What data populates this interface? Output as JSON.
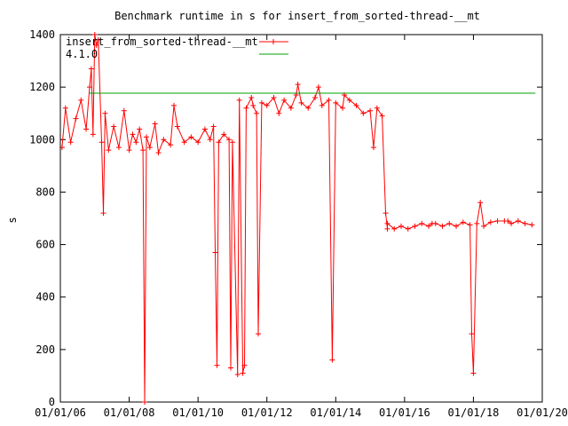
{
  "chart_data": {
    "type": "line",
    "title": "Benchmark runtime in s for insert_from_sorted-thread-__mt",
    "xlabel": "",
    "ylabel": "s",
    "x_tick_labels": [
      "01/01/06",
      "01/01/08",
      "01/01/10",
      "01/01/12",
      "01/01/14",
      "01/01/16",
      "01/01/18",
      "01/01/20"
    ],
    "xlim": [
      2006.0,
      2020.0
    ],
    "ylim": [
      0,
      1400
    ],
    "y_ticks": [
      0,
      200,
      400,
      600,
      800,
      1000,
      1200,
      1400
    ],
    "grid": false,
    "legend_position": "top-left",
    "series": [
      {
        "name": "insert_from_sorted-thread-__mt",
        "color": "#ff0000",
        "marker": "plus",
        "points": [
          [
            2006.05,
            970
          ],
          [
            2006.15,
            1120
          ],
          [
            2006.3,
            990
          ],
          [
            2006.45,
            1080
          ],
          [
            2006.6,
            1150
          ],
          [
            2006.75,
            1040
          ],
          [
            2006.85,
            1200
          ],
          [
            2006.95,
            1020
          ],
          [
            2007.05,
            1360
          ],
          [
            2007.2,
            990
          ],
          [
            2007.3,
            1100
          ],
          [
            2007.4,
            960
          ],
          [
            2007.55,
            1050
          ],
          [
            2007.7,
            970
          ],
          [
            2007.85,
            1110
          ],
          [
            2008.0,
            960
          ],
          [
            2008.2,
            990
          ],
          [
            2008.3,
            1040
          ],
          [
            2008.4,
            960
          ],
          [
            2008.5,
            1010
          ],
          [
            2008.6,
            970
          ],
          [
            2008.75,
            1060
          ],
          [
            2008.85,
            950
          ],
          [
            2009.0,
            1000
          ],
          [
            2009.2,
            980
          ],
          [
            2009.4,
            1050
          ],
          [
            2009.6,
            990
          ],
          [
            2009.8,
            1010
          ],
          [
            2010.0,
            990
          ],
          [
            2010.2,
            1040
          ],
          [
            2010.35,
            1000
          ],
          [
            2010.45,
            1050
          ],
          [
            2010.6,
            990
          ],
          [
            2010.75,
            1020
          ],
          [
            2010.9,
            1000
          ],
          [
            2011.0,
            990
          ],
          [
            2011.2,
            1150
          ],
          [
            2011.4,
            1120
          ],
          [
            2011.55,
            1160
          ],
          [
            2011.7,
            1100
          ],
          [
            2011.85,
            1140
          ],
          [
            2012.0,
            1130
          ],
          [
            2012.2,
            1160
          ],
          [
            2012.35,
            1100
          ],
          [
            2012.5,
            1150
          ],
          [
            2012.7,
            1120
          ],
          [
            2012.85,
            1170
          ],
          [
            2013.0,
            1140
          ],
          [
            2013.2,
            1120
          ],
          [
            2013.4,
            1160
          ],
          [
            2013.6,
            1130
          ],
          [
            2013.8,
            1150
          ],
          [
            2014.0,
            1140
          ],
          [
            2014.2,
            1120
          ],
          [
            2014.4,
            1150
          ],
          [
            2014.6,
            1130
          ],
          [
            2014.8,
            1100
          ],
          [
            2015.0,
            1110
          ],
          [
            2015.1,
            970
          ],
          [
            2015.2,
            1120
          ],
          [
            2015.35,
            1090
          ],
          [
            2015.45,
            720
          ],
          [
            2015.5,
            660
          ],
          [
            2015.7,
            660
          ],
          [
            2015.9,
            670
          ],
          [
            2016.1,
            660
          ],
          [
            2016.3,
            670
          ],
          [
            2016.5,
            680
          ],
          [
            2016.7,
            670
          ],
          [
            2016.9,
            680
          ],
          [
            2017.1,
            670
          ],
          [
            2017.3,
            680
          ],
          [
            2017.5,
            670
          ],
          [
            2017.7,
            685
          ],
          [
            2017.9,
            675
          ],
          [
            2018.1,
            680
          ],
          [
            2018.3,
            670
          ],
          [
            2018.5,
            685
          ],
          [
            2018.7,
            690
          ],
          [
            2018.9,
            690
          ],
          [
            2019.1,
            680
          ],
          [
            2019.3,
            690
          ],
          [
            2019.5,
            680
          ],
          [
            2019.7,
            675
          ]
        ],
        "dips": [
          [
            2006.9,
            1270
          ],
          [
            2007.0,
            1400
          ],
          [
            2007.1,
            1380
          ],
          [
            2007.25,
            720
          ],
          [
            2008.1,
            1020
          ],
          [
            2008.45,
            0
          ],
          [
            2009.3,
            1130
          ],
          [
            2010.5,
            570
          ],
          [
            2010.55,
            140
          ],
          [
            2010.95,
            130
          ],
          [
            2011.15,
            105
          ],
          [
            2011.3,
            110
          ],
          [
            2011.35,
            140
          ],
          [
            2011.6,
            1130
          ],
          [
            2011.75,
            260
          ],
          [
            2012.9,
            1210
          ],
          [
            2013.5,
            1200
          ],
          [
            2013.9,
            160
          ],
          [
            2014.25,
            1170
          ],
          [
            2015.5,
            680
          ],
          [
            2016.8,
            680
          ],
          [
            2017.95,
            260
          ],
          [
            2018.0,
            110
          ],
          [
            2018.2,
            760
          ],
          [
            2019.0,
            690
          ]
        ]
      },
      {
        "name": "4.1.0",
        "color": "#00a000",
        "marker": "none",
        "points": [
          [
            2006.85,
            1177
          ],
          [
            2019.8,
            1177
          ]
        ]
      }
    ]
  }
}
